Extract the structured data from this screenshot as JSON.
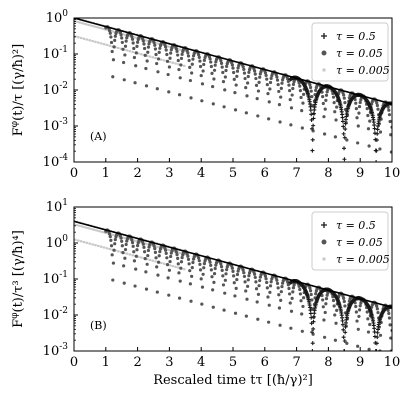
{
  "chart_data": [
    {
      "type": "scatter",
      "panel_label": "(A)",
      "ylabel": "F^{φ}(t)/τ    [(γ/ħ)²]",
      "xlabel": "",
      "xlim": [
        0,
        10
      ],
      "ylim": [
        0.0001,
        1
      ],
      "y_scale": "log",
      "x_ticks": [
        "0",
        "1",
        "2",
        "3",
        "4",
        "5",
        "6",
        "7",
        "8",
        "9",
        "10"
      ],
      "y_ticks": [
        {
          "value": 1,
          "base": "10",
          "exp": "0"
        },
        {
          "value": 0.1,
          "base": "10",
          "exp": "-1"
        },
        {
          "value": 0.01,
          "base": "10",
          "exp": "-2"
        },
        {
          "value": 0.001,
          "base": "10",
          "exp": "-3"
        },
        {
          "value": 0.0001,
          "base": "10",
          "exp": "-4"
        }
      ],
      "envelope": {
        "y0": 1.0,
        "decay": 0.55
      },
      "series": [
        {
          "name": "τ = 0.5",
          "marker": "plus",
          "color": "#1a1a1a",
          "period": 3.6,
          "x_start": 6.8,
          "x_end": 10
        },
        {
          "name": "τ = 0.05",
          "marker": "circle",
          "color": "#555555",
          "period": 3.6,
          "x_start": 1.0,
          "x_end": 10
        },
        {
          "name": "τ = 0.005",
          "marker": "square",
          "color": "#c8c8c8",
          "period": 3.6,
          "x_start": 0,
          "x_end": 3.5
        }
      ],
      "legend": "top-right"
    },
    {
      "type": "scatter",
      "panel_label": "(B)",
      "ylabel": "F^{φ}(t)/τ³    [(γ/ħ)⁴]",
      "xlabel": "Rescaled time tτ    [(ħ/γ)²]",
      "xlim": [
        0,
        10
      ],
      "ylim": [
        0.001,
        10
      ],
      "y_scale": "log",
      "x_ticks": [
        "0",
        "1",
        "2",
        "3",
        "4",
        "5",
        "6",
        "7",
        "8",
        "9",
        "10"
      ],
      "y_ticks": [
        {
          "value": 10,
          "base": "10",
          "exp": "1"
        },
        {
          "value": 1,
          "base": "10",
          "exp": "0"
        },
        {
          "value": 0.1,
          "base": "10",
          "exp": "-1"
        },
        {
          "value": 0.01,
          "base": "10",
          "exp": "-2"
        },
        {
          "value": 0.001,
          "base": "10",
          "exp": "-3"
        }
      ],
      "envelope": {
        "y0": 4.0,
        "decay": 0.55
      },
      "series": [
        {
          "name": "τ = 0.5",
          "marker": "plus",
          "color": "#1a1a1a",
          "period": 3.6,
          "x_start": 6.8,
          "x_end": 10
        },
        {
          "name": "τ = 0.05",
          "marker": "circle",
          "color": "#555555",
          "period": 3.6,
          "x_start": 1.0,
          "x_end": 10
        },
        {
          "name": "τ = 0.005",
          "marker": "square",
          "color": "#c8c8c8",
          "period": 3.6,
          "x_start": 0,
          "x_end": 3.5
        }
      ],
      "legend": "top-right"
    }
  ]
}
